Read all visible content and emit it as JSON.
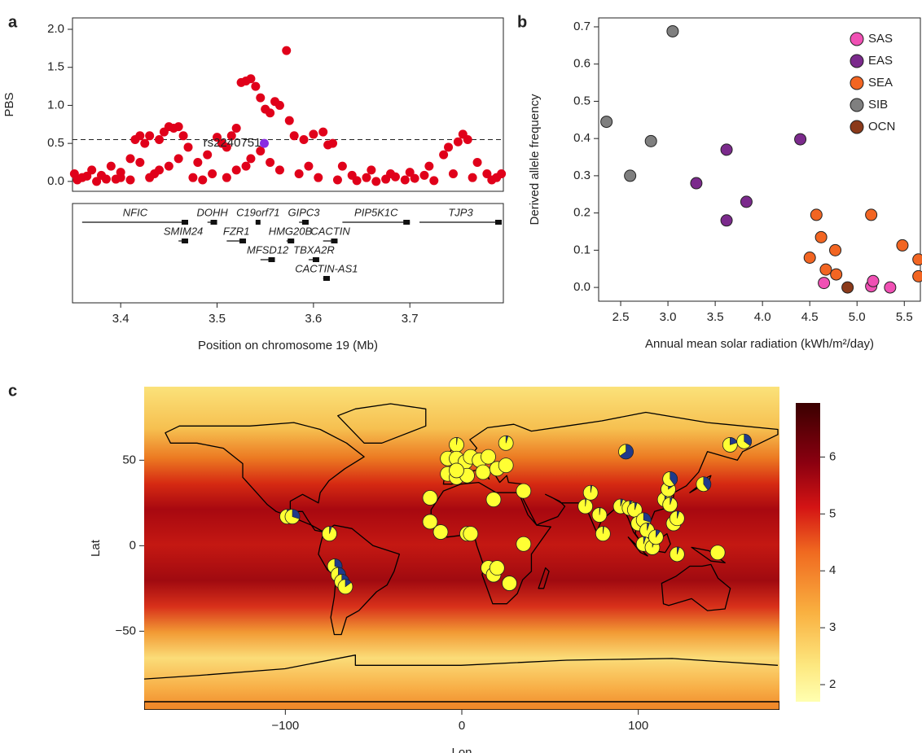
{
  "chart_data": [
    {
      "type": "scatter",
      "panel": "a",
      "ylabel": "PBS",
      "xlabel": "Position on chromosome 19 (Mb)",
      "xlim": [
        3.35,
        3.797
      ],
      "xticks": [
        3.4,
        3.5,
        3.6,
        3.7
      ],
      "ylim": [
        -0.13,
        2.15
      ],
      "yticks": [
        {
          "value": 0,
          "label": "0.0"
        },
        0.5,
        {
          "value": 1,
          "label": "1.0"
        },
        1.5,
        {
          "value": 2,
          "label": "2.0"
        }
      ],
      "threshold": 0.55,
      "legend": false,
      "series": [
        {
          "color": "#e0001a",
          "x": [
            3.352,
            3.36,
            3.37,
            3.38,
            3.39,
            3.4,
            3.41,
            3.415,
            3.42,
            3.425,
            3.43,
            3.44,
            3.445,
            3.45,
            3.455,
            3.46,
            3.465,
            3.47,
            3.48,
            3.49,
            3.5,
            3.505,
            3.51,
            3.515,
            3.52,
            3.525,
            3.53,
            3.535,
            3.54,
            3.545,
            3.55,
            3.555,
            3.56,
            3.565,
            3.572,
            3.575,
            3.58,
            3.59,
            3.6,
            3.61,
            3.615,
            3.62,
            3.63,
            3.64,
            3.66,
            3.68,
            3.7,
            3.72,
            3.735,
            3.74,
            3.75,
            3.755,
            3.76,
            3.77,
            3.78,
            3.79,
            3.355,
            3.375,
            3.395,
            3.435,
            3.475,
            3.485,
            3.495,
            3.535,
            3.545,
            3.555,
            3.565,
            3.585,
            3.595,
            3.605,
            3.625,
            3.645,
            3.655,
            3.665,
            3.675,
            3.685,
            3.695,
            3.705,
            3.715,
            3.725,
            3.745,
            3.765,
            3.785,
            3.795,
            3.53,
            3.52,
            3.51,
            3.46,
            3.45,
            3.44,
            3.43,
            3.42,
            3.41,
            3.4,
            3.385,
            3.365
          ],
          "values": [
            0.1,
            0.05,
            0.15,
            0.08,
            0.2,
            0.12,
            0.3,
            0.55,
            0.6,
            0.5,
            0.6,
            0.55,
            0.65,
            0.72,
            0.7,
            0.72,
            0.6,
            0.45,
            0.25,
            0.35,
            0.58,
            0.5,
            0.45,
            0.6,
            0.7,
            1.3,
            1.32,
            1.35,
            1.25,
            1.1,
            0.95,
            0.9,
            1.05,
            1.0,
            1.72,
            0.8,
            0.6,
            0.55,
            0.62,
            0.65,
            0.48,
            0.5,
            0.2,
            0.08,
            0.15,
            0.1,
            0.12,
            0.2,
            0.35,
            0.45,
            0.52,
            0.62,
            0.55,
            0.25,
            0.1,
            0.05,
            0.02,
            0.0,
            0.03,
            0.1,
            0.05,
            0.02,
            0.1,
            0.3,
            0.4,
            0.25,
            0.15,
            0.1,
            0.2,
            0.05,
            0.02,
            0.01,
            0.05,
            0.0,
            0.03,
            0.06,
            0.02,
            0.04,
            0.08,
            0.01,
            0.1,
            0.05,
            0.02,
            0.1,
            0.2,
            0.15,
            0.05,
            0.3,
            0.2,
            0.15,
            0.05,
            0.25,
            0.02,
            0.05,
            0.03,
            0.07
          ]
        },
        {
          "name": "rs2240751",
          "color": "#8a2be2",
          "x": [
            3.549
          ],
          "values": [
            0.5
          ]
        }
      ],
      "genes": [
        {
          "name": "NFIC",
          "start": 3.36,
          "end": 3.47
        },
        {
          "name": "SMIM24",
          "start": 3.46,
          "end": 3.47
        },
        {
          "name": "DOHH",
          "start": 3.49,
          "end": 3.5
        },
        {
          "name": "FZR1",
          "start": 3.51,
          "end": 3.53
        },
        {
          "name": "C19orf71",
          "start": 3.54,
          "end": 3.545
        },
        {
          "name": "MFSD12",
          "start": 3.545,
          "end": 3.56
        },
        {
          "name": "HMG20B",
          "start": 3.572,
          "end": 3.58
        },
        {
          "name": "GIPC3",
          "start": 3.585,
          "end": 3.595
        },
        {
          "name": "TBXA2R",
          "start": 3.595,
          "end": 3.606
        },
        {
          "name": "CACTIN",
          "start": 3.61,
          "end": 3.625
        },
        {
          "name": "CACTIN-AS1",
          "start": 3.61,
          "end": 3.617
        },
        {
          "name": "PIP5K1C",
          "start": 3.63,
          "end": 3.7
        },
        {
          "name": "TJP3",
          "start": 3.71,
          "end": 3.797
        }
      ]
    },
    {
      "type": "scatter",
      "panel": "b",
      "ylabel": "Derived allele frequency",
      "xlabel": "Annual mean solar radiation (kWh/m²/day)",
      "xlim": [
        2.267,
        5.67
      ],
      "xticks": [
        2.5,
        {
          "value": 3,
          "label": "3.0"
        },
        3.5,
        {
          "value": 4,
          "label": "4.0"
        },
        4.5,
        {
          "value": 5,
          "label": "5.0"
        },
        5.5
      ],
      "ylim": [
        -0.037,
        0.724
      ],
      "yticks": [
        {
          "value": 0,
          "label": "0.0"
        },
        0.1,
        0.2,
        0.3,
        0.4,
        0.5,
        0.6,
        0.7
      ],
      "legend": "top-right",
      "edgecolor": "#222222",
      "series": [
        {
          "name": "SAS",
          "color": "#f050b4",
          "x": [
            4.65,
            5.15,
            5.17,
            5.35
          ],
          "values": [
            0.012,
            0.003,
            0.017,
            0.0
          ]
        },
        {
          "name": "EAS",
          "color": "#7b2a8c",
          "x": [
            3.3,
            3.62,
            3.62,
            3.83,
            4.4
          ],
          "values": [
            0.28,
            0.37,
            0.18,
            0.23,
            0.398
          ]
        },
        {
          "name": "SEA",
          "color": "#f26522",
          "x": [
            4.5,
            4.57,
            4.62,
            4.67,
            4.77,
            4.78,
            5.15,
            5.48,
            5.65,
            5.65
          ],
          "values": [
            0.08,
            0.195,
            0.135,
            0.048,
            0.1,
            0.035,
            0.195,
            0.113,
            0.075,
            0.03
          ]
        },
        {
          "name": "SIB",
          "color": "#7f7f7f",
          "x": [
            2.35,
            2.6,
            2.82,
            3.05
          ],
          "values": [
            0.445,
            0.3,
            0.393,
            0.688
          ]
        },
        {
          "name": "OCN",
          "color": "#8b3a1a",
          "x": [
            4.9
          ],
          "values": [
            0.0
          ]
        }
      ]
    },
    {
      "type": "pie-map",
      "panel": "c",
      "xlabel": "Lon",
      "ylabel": "Lat",
      "xlim": [
        -180,
        180
      ],
      "xticks": [
        {
          "value": -100,
          "label": "−100"
        },
        0,
        100
      ],
      "ylim": [
        -96,
        93
      ],
      "yticks": [
        {
          "value": -50,
          "label": "−50"
        },
        0,
        50
      ],
      "color": "#ffff33",
      "derived_color": "#1f3a8a",
      "colorbar_lim": [
        1.7,
        6.95
      ],
      "colorbar_ticks": [
        2,
        3,
        4,
        5,
        6
      ],
      "x": [
        -99,
        -96,
        -75,
        -72,
        -70,
        -68,
        -66,
        -3,
        -8,
        -3,
        2,
        5,
        10,
        15,
        -8,
        -3,
        3,
        12,
        -3,
        25,
        20,
        25,
        35,
        18,
        -18,
        -18,
        -12,
        3,
        5,
        35,
        15,
        18,
        20,
        27,
        70,
        73,
        78,
        80,
        93,
        90,
        95,
        98,
        100,
        103,
        105,
        103,
        108,
        110,
        115,
        117,
        118,
        118,
        120,
        122,
        122,
        137,
        145,
        152,
        160
      ],
      "y": [
        17,
        17,
        7,
        -12,
        -17,
        -21,
        -24,
        59,
        51,
        51,
        49,
        52,
        50,
        52,
        42,
        40,
        41,
        43,
        44,
        60,
        45,
        47,
        32,
        27,
        28,
        14,
        8,
        7,
        7,
        1,
        -13,
        -17,
        -13,
        -22,
        23,
        31,
        18,
        7,
        55,
        23,
        22,
        21,
        13,
        15,
        9,
        1,
        -1,
        5,
        27,
        33,
        39,
        24,
        13,
        16,
        -5,
        36,
        -4,
        59,
        61
      ],
      "values": [
        0.25,
        0.3,
        0.05,
        0.3,
        0.6,
        0.2,
        0.15,
        0.02,
        0,
        0,
        0,
        0,
        0,
        0,
        0,
        0,
        0,
        0,
        0,
        0.05,
        0,
        0,
        0,
        0,
        0,
        0,
        0,
        0,
        0,
        0,
        0,
        0,
        0,
        0,
        0.02,
        0.03,
        0.02,
        0.02,
        0.65,
        0.05,
        0.05,
        0.05,
        0.1,
        0.3,
        0.05,
        0.05,
        0.05,
        0.1,
        0.1,
        0.15,
        0.4,
        0.05,
        0.05,
        0.05,
        0.05,
        0.4,
        0,
        0.2,
        0.35
      ]
    }
  ]
}
